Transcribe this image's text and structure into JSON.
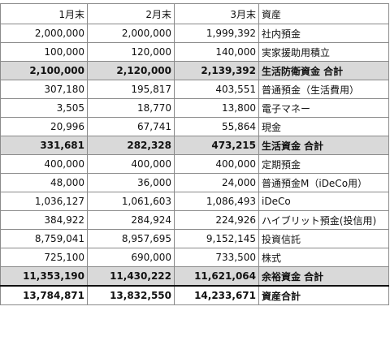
{
  "header": {
    "col1": "1月末",
    "col2": "2月末",
    "col3": "3月末",
    "col4": "資産"
  },
  "rows": [
    {
      "v1": "2,000,000",
      "v2": "2,000,000",
      "v3": "1,999,392",
      "label": "社内預金",
      "style": "normal"
    },
    {
      "v1": "100,000",
      "v2": "120,000",
      "v3": "140,000",
      "label": "実家援助用積立",
      "style": "normal"
    },
    {
      "v1": "2,100,000",
      "v2": "2,120,000",
      "v3": "2,139,392",
      "label": "生活防衛資金 合計",
      "style": "subtotal"
    },
    {
      "v1": "307,180",
      "v2": "195,817",
      "v3": "403,551",
      "label": "普通預金（生活費用）",
      "style": "normal"
    },
    {
      "v1": "3,505",
      "v2": "18,770",
      "v3": "13,800",
      "label": "電子マネー",
      "style": "normal"
    },
    {
      "v1": "20,996",
      "v2": "67,741",
      "v3": "55,864",
      "label": "現金",
      "style": "normal"
    },
    {
      "v1": "331,681",
      "v2": "282,328",
      "v3": "473,215",
      "label": "生活資金 合計",
      "style": "subtotal"
    },
    {
      "v1": "400,000",
      "v2": "400,000",
      "v3": "400,000",
      "label": "定期預金",
      "style": "normal"
    },
    {
      "v1": "48,000",
      "v2": "36,000",
      "v3": "24,000",
      "label": "普通預金M（iDeCo用）",
      "style": "normal"
    },
    {
      "v1": "1,036,127",
      "v2": "1,061,603",
      "v3": "1,086,493",
      "label": "iDeCo",
      "style": "normal"
    },
    {
      "v1": "384,922",
      "v2": "284,924",
      "v3": "224,926",
      "label": "ハイブリット預金(投信用)",
      "style": "normal"
    },
    {
      "v1": "8,759,041",
      "v2": "8,957,695",
      "v3": "9,152,145",
      "label": "投資信託",
      "style": "normal"
    },
    {
      "v1": "725,100",
      "v2": "690,000",
      "v3": "733,500",
      "label": "株式",
      "style": "normal"
    },
    {
      "v1": "11,353,190",
      "v2": "11,430,222",
      "v3": "11,621,064",
      "label": "余裕資金 合計",
      "style": "subtotal"
    },
    {
      "v1": "13,784,871",
      "v2": "13,832,550",
      "v3": "14,233,671",
      "label": "資産合計",
      "style": "total"
    }
  ]
}
